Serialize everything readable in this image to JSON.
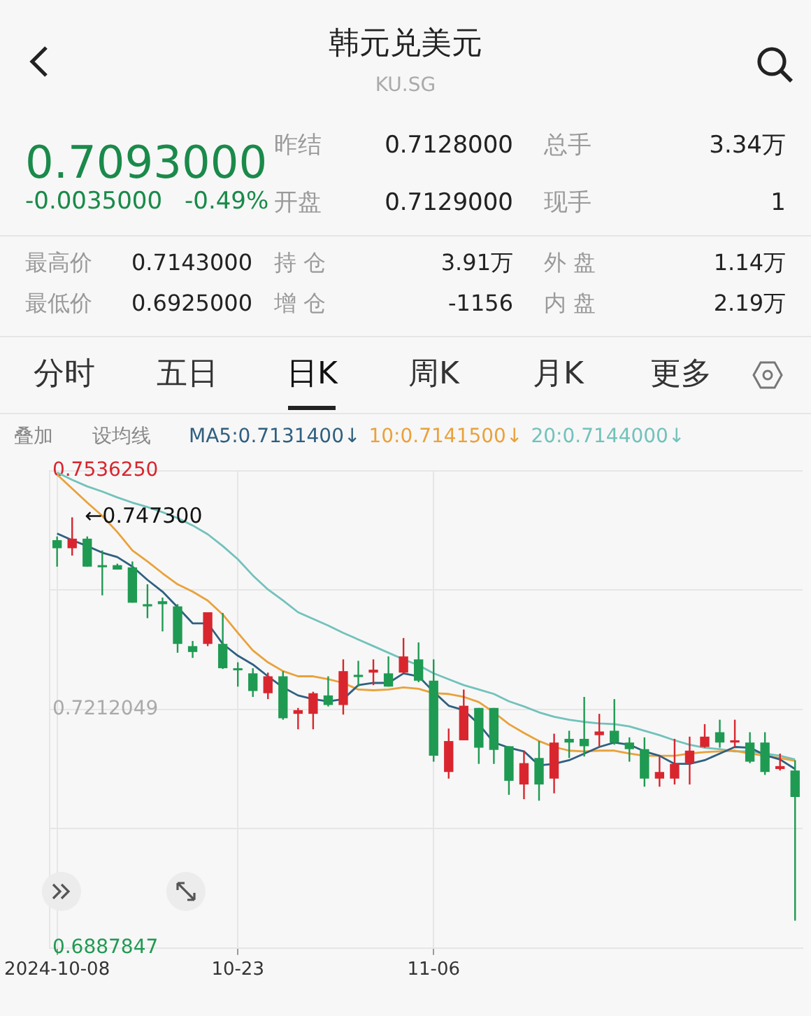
{
  "chart_data": {
    "type": "candlestick",
    "title": "韩元兑美元",
    "subtitle": "KU.SG",
    "categories": [
      "2024-10-08",
      null,
      null,
      null,
      null,
      null,
      null,
      null,
      null,
      null,
      null,
      null,
      "10-23",
      null,
      null,
      null,
      null,
      null,
      null,
      null,
      null,
      null,
      null,
      null,
      null,
      "11-06",
      null,
      null,
      null,
      null,
      null,
      null,
      null,
      null,
      null,
      null,
      null,
      null,
      null,
      null,
      null,
      null,
      null,
      null,
      null,
      null,
      null,
      null,
      null,
      null
    ],
    "ohlc": [
      [
        0.7442,
        0.7447,
        0.7406,
        0.7431
      ],
      [
        0.7431,
        0.7473,
        0.7421,
        0.7444
      ],
      [
        0.7444,
        0.7447,
        0.7406,
        0.7406
      ],
      [
        0.7408,
        0.7428,
        0.7367,
        0.7406
      ],
      [
        0.7408,
        0.741,
        0.7402,
        0.7402
      ],
      [
        0.7405,
        0.7413,
        0.7357,
        0.7357
      ],
      [
        0.7355,
        0.7382,
        0.7336,
        0.7352
      ],
      [
        0.7359,
        0.7364,
        0.7318,
        0.7355
      ],
      [
        0.7352,
        0.7355,
        0.7289,
        0.7301
      ],
      [
        0.7298,
        0.7305,
        0.7282,
        0.729
      ],
      [
        0.7301,
        0.7344,
        0.7298,
        0.7344
      ],
      [
        0.7301,
        0.7343,
        0.7267,
        0.7268
      ],
      [
        0.7268,
        0.7276,
        0.7243,
        0.7266
      ],
      [
        0.7261,
        0.7268,
        0.7229,
        0.7237
      ],
      [
        0.7234,
        0.7262,
        0.7226,
        0.7257
      ],
      [
        0.7257,
        0.7264,
        0.7198,
        0.72
      ],
      [
        0.7206,
        0.7214,
        0.7185,
        0.7211
      ],
      [
        0.7206,
        0.7236,
        0.7185,
        0.7234
      ],
      [
        0.7231,
        0.7257,
        0.7216,
        0.7218
      ],
      [
        0.7218,
        0.728,
        0.7205,
        0.7264
      ],
      [
        0.7259,
        0.7278,
        0.7243,
        0.7256
      ],
      [
        0.7262,
        0.728,
        0.7245,
        0.7266
      ],
      [
        0.7261,
        0.7284,
        0.7243,
        0.7243
      ],
      [
        0.7262,
        0.7309,
        0.7261,
        0.7284
      ],
      [
        0.728,
        0.7303,
        0.7249,
        0.7251
      ],
      [
        0.7251,
        0.728,
        0.7141,
        0.7149
      ],
      [
        0.7127,
        0.7186,
        0.7118,
        0.7169
      ],
      [
        0.717,
        0.7239,
        0.717,
        0.7217
      ],
      [
        0.7214,
        0.7214,
        0.7138,
        0.716
      ],
      [
        0.7214,
        0.7214,
        0.7138,
        0.7157
      ],
      [
        0.7162,
        0.7162,
        0.7096,
        0.7115
      ],
      [
        0.711,
        0.7156,
        0.709,
        0.7139
      ],
      [
        0.7146,
        0.7169,
        0.7088,
        0.711
      ],
      [
        0.7118,
        0.7179,
        0.7098,
        0.7167
      ],
      [
        0.7172,
        0.7183,
        0.7146,
        0.7167
      ],
      [
        0.7172,
        0.7229,
        0.7148,
        0.7162
      ],
      [
        0.7177,
        0.7206,
        0.7162,
        0.7182
      ],
      [
        0.7183,
        0.7226,
        0.7164,
        0.7167
      ],
      [
        0.7167,
        0.7174,
        0.7141,
        0.7158
      ],
      [
        0.7158,
        0.7174,
        0.7107,
        0.7118
      ],
      [
        0.7118,
        0.7148,
        0.7107,
        0.7127
      ],
      [
        0.7118,
        0.7172,
        0.711,
        0.7138
      ],
      [
        0.7139,
        0.7175,
        0.711,
        0.7156
      ],
      [
        0.7161,
        0.7192,
        0.716,
        0.7175
      ],
      [
        0.7181,
        0.7198,
        0.716,
        0.7167
      ],
      [
        0.7167,
        0.7198,
        0.7161,
        0.717
      ],
      [
        0.7167,
        0.7181,
        0.7139,
        0.7141
      ],
      [
        0.7167,
        0.7181,
        0.7123,
        0.7127
      ],
      [
        0.7131,
        0.7152,
        0.7129,
        0.7135
      ],
      [
        0.7129,
        0.7143,
        0.6925,
        0.7093
      ]
    ],
    "series": [
      {
        "name": "MA5:0.7131400↓",
        "type": "line",
        "color": "#2f6080",
        "values": [
          0.7451,
          0.7442,
          0.7434,
          0.7425,
          0.7419,
          0.7406,
          0.7388,
          0.7372,
          0.7351,
          0.7329,
          0.7329,
          0.7301,
          0.7285,
          0.7273,
          0.7257,
          0.7242,
          0.7231,
          0.7226,
          0.7223,
          0.7226,
          0.7245,
          0.7248,
          0.7248,
          0.7261,
          0.7257,
          0.7236,
          0.7217,
          0.7211,
          0.7192,
          0.7167,
          0.716,
          0.7155,
          0.7136,
          0.7138,
          0.7143,
          0.7152,
          0.7161,
          0.7167,
          0.7164,
          0.7155,
          0.7149,
          0.7138,
          0.7138,
          0.7143,
          0.7152,
          0.7161,
          0.716,
          0.715,
          0.7144,
          0.7131
        ]
      },
      {
        "name": "10:0.7141500↓",
        "type": "line",
        "color": "#e9a23b",
        "values": [
          0.7531,
          0.7512,
          0.7493,
          0.7475,
          0.7453,
          0.7428,
          0.7413,
          0.7397,
          0.7382,
          0.7372,
          0.736,
          0.7341,
          0.7316,
          0.7292,
          0.7276,
          0.7264,
          0.7257,
          0.7257,
          0.7253,
          0.7248,
          0.7239,
          0.7238,
          0.7239,
          0.7242,
          0.724,
          0.7234,
          0.7233,
          0.7229,
          0.7222,
          0.7208,
          0.7192,
          0.718,
          0.7169,
          0.7161,
          0.7156,
          0.7155,
          0.7156,
          0.7156,
          0.7152,
          0.7149,
          0.7149,
          0.7149,
          0.7152,
          0.7154,
          0.7155,
          0.7156,
          0.7152,
          0.7149,
          0.7146,
          0.7142
        ]
      },
      {
        "name": "20:0.7144000↓",
        "type": "line",
        "color": "#72c2bb",
        "values": [
          0.7534,
          0.7524,
          0.7515,
          0.7508,
          0.75,
          0.7493,
          0.7487,
          0.748,
          0.7472,
          0.7462,
          0.745,
          0.7434,
          0.7416,
          0.7394,
          0.7375,
          0.736,
          0.7344,
          0.7335,
          0.7326,
          0.7316,
          0.7307,
          0.7298,
          0.7289,
          0.728,
          0.7272,
          0.7261,
          0.7253,
          0.7245,
          0.7239,
          0.7233,
          0.7223,
          0.7216,
          0.7208,
          0.7202,
          0.7198,
          0.7195,
          0.7193,
          0.7192,
          0.7189,
          0.7183,
          0.7177,
          0.717,
          0.7164,
          0.716,
          0.7158,
          0.7155,
          0.7155,
          0.7152,
          0.7149,
          0.7144
        ]
      }
    ],
    "ylim": [
      0.6887847,
      0.753625
    ],
    "yticks": [
      0.6887847,
      {
        "value": 0.7049948,
        "label": null
      },
      0.7212049,
      {
        "value": 0.73741495,
        "label": null
      },
      {
        "value": 0.753625,
        "label": "0.7536250"
      }
    ],
    "grid": true,
    "legend": "top left",
    "annotations": [
      "←0.747300",
      "0.7093000",
      "-0.0035000",
      "-0.49%",
      "昨结",
      "0.7128000",
      "总手",
      "3.34万",
      "开盘",
      "0.7129000",
      "现手",
      "1",
      "最高价",
      "0.7143000",
      "持 仓",
      "3.91万",
      "外 盘",
      "1.14万",
      "最低价",
      "0.6925000",
      "增 仓",
      "-1156",
      "内 盘",
      "2.19万",
      "分时",
      "五日",
      "日K",
      "周K",
      "月K",
      "更多",
      "叠加",
      "设均线"
    ]
  }
}
